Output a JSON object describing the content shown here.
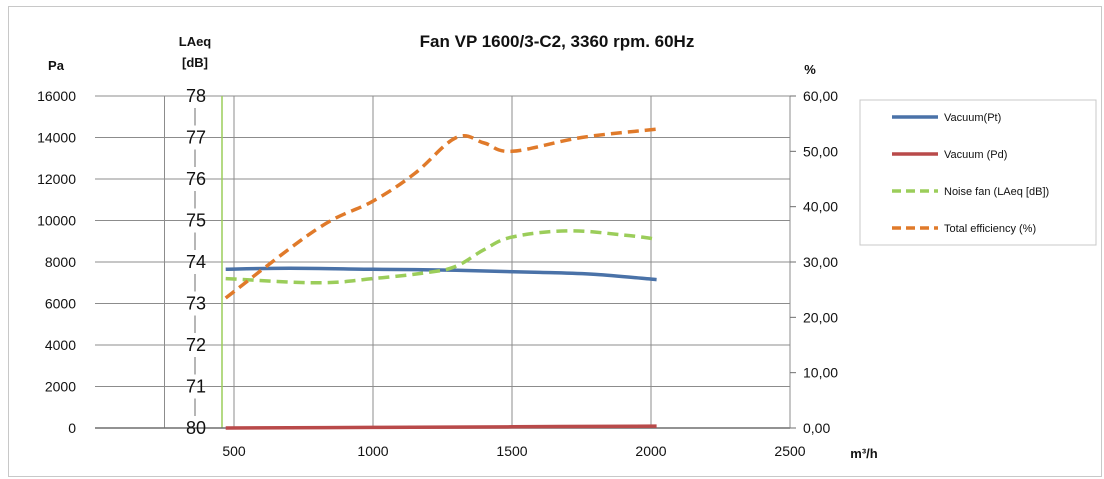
{
  "chart_data": {
    "type": "line",
    "title": "Fan VP 1600/3-C2, 3360 rpm. 60Hz",
    "xlabel": "m³/h",
    "xlim": [
      0,
      2500
    ],
    "x_ticks": [
      "500",
      "1000",
      "1500",
      "2000",
      "2500"
    ],
    "x_tick_values": [
      500,
      1000,
      1500,
      2000,
      2500
    ],
    "grid": true,
    "legend_position": "right",
    "axes": {
      "left_pa": {
        "label": "Pa",
        "ylim": [
          0,
          16000
        ],
        "ticks": [
          "0",
          "2000",
          "4000",
          "6000",
          "8000",
          "10000",
          "12000",
          "14000",
          "16000"
        ]
      },
      "left_laeq": {
        "label_line1": "LAeq",
        "label_line2": "[dB]",
        "ticks_bottom_to_top": [
          "80",
          "71",
          "72",
          "73",
          "74",
          "75",
          "76",
          "77",
          "78"
        ]
      },
      "right_percent": {
        "label": "%",
        "ylim": [
          0,
          60
        ],
        "ticks": [
          "0,00",
          "10,00",
          "20,00",
          "30,00",
          "40,00",
          "50,00",
          "60,00"
        ]
      }
    },
    "series": [
      {
        "name": "Vacuum(Pt)",
        "axis": "left_pa",
        "color": "#4a72a8",
        "style": "solid",
        "x": [
          470,
          700,
          1000,
          1300,
          1600,
          1800,
          2020
        ],
        "y": [
          7650,
          7700,
          7650,
          7600,
          7500,
          7400,
          7150
        ]
      },
      {
        "name": "Vacuum (Pd)",
        "axis": "left_pa",
        "color": "#b94a4a",
        "style": "solid",
        "x": [
          470,
          1000,
          1500,
          2020
        ],
        "y": [
          0,
          30,
          60,
          90
        ]
      },
      {
        "name": "Noise fan (LAeq [dB])",
        "axis": "left_laeq",
        "color": "#9bcd5a",
        "style": "dashed",
        "x": [
          470,
          800,
          1000,
          1200,
          1300,
          1400,
          1500,
          1700,
          1900,
          2020
        ],
        "y": [
          73.6,
          73.5,
          73.6,
          73.75,
          73.9,
          74.3,
          74.6,
          74.75,
          74.65,
          74.55
        ]
      },
      {
        "name": "Total efficiency (%)",
        "axis": "right_percent",
        "color": "#e07a2a",
        "style": "dashed",
        "x": [
          470,
          800,
          1000,
          1150,
          1300,
          1400,
          1500,
          1750,
          2020
        ],
        "y": [
          23.5,
          36,
          41,
          46,
          52.5,
          51.5,
          50,
          52.5,
          54
        ]
      }
    ]
  }
}
